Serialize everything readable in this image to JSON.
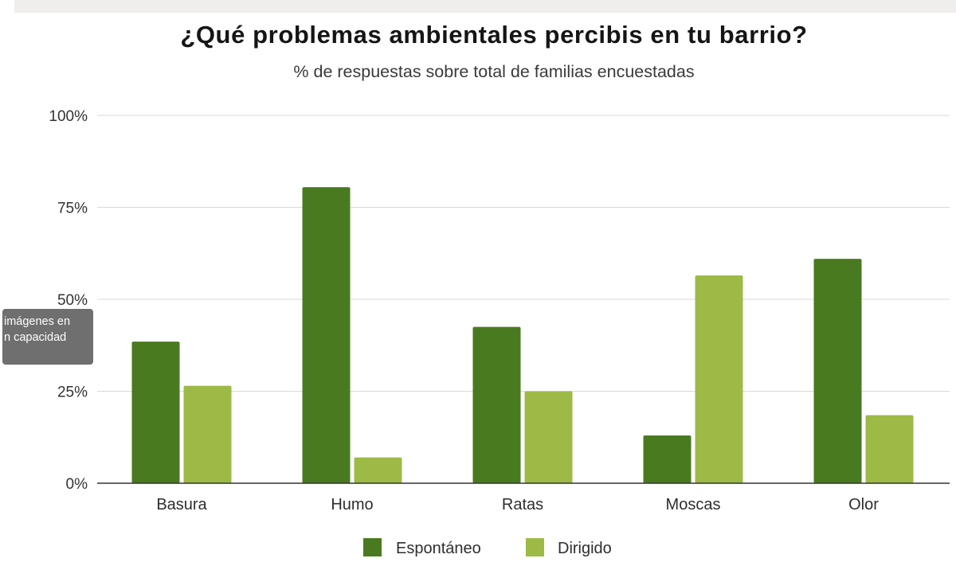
{
  "chart_data": {
    "type": "bar",
    "title": "¿Qué problemas ambientales percibis en tu barrio?",
    "subtitle": "% de respuestas sobre total de familias encuestadas",
    "categories": [
      "Basura",
      "Humo",
      "Ratas",
      "Moscas",
      "Olor"
    ],
    "series": [
      {
        "name": "Espontáneo",
        "color": "#4a7a1f",
        "values": [
          38.5,
          80.5,
          42.5,
          13,
          61
        ]
      },
      {
        "name": "Dirigido",
        "color": "#9cba45",
        "values": [
          26.5,
          7,
          25,
          56.5,
          18.5
        ]
      }
    ],
    "ylim": [
      0,
      100
    ],
    "yticks": [
      0,
      25,
      50,
      75,
      100
    ],
    "ytick_labels": [
      "0%",
      "25%",
      "50%",
      "75%",
      "100%"
    ],
    "xlabel": "",
    "ylabel": "",
    "legend": "bottom",
    "grid": true
  },
  "overlay": {
    "line1": "imágenes en",
    "line2": "n capacidad"
  }
}
